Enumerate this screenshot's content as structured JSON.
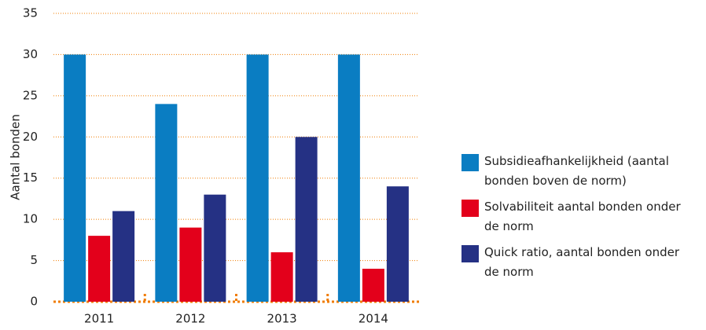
{
  "chart_data": {
    "type": "bar",
    "y_label": "Aantal bonden",
    "categories": [
      "2011",
      "2012",
      "2013",
      "2014"
    ],
    "series": [
      {
        "name": "Subsidieafhankelijkheid (aantal bonden boven de norm)",
        "color": "#0a7dc2",
        "values": [
          30,
          24,
          30,
          30
        ]
      },
      {
        "name": "Solvabiliteit aantal bonden onder de norm",
        "color": "#e3001b",
        "values": [
          8,
          9,
          6,
          4
        ]
      },
      {
        "name": "Quick ratio, aantal bonden onder de norm",
        "color": "#253184",
        "values": [
          11,
          13,
          20,
          14
        ]
      }
    ],
    "ylim": [
      0,
      35
    ],
    "yticks": [
      0,
      5,
      10,
      15,
      20,
      25,
      30,
      35
    ],
    "grid": true,
    "legend": "right"
  }
}
